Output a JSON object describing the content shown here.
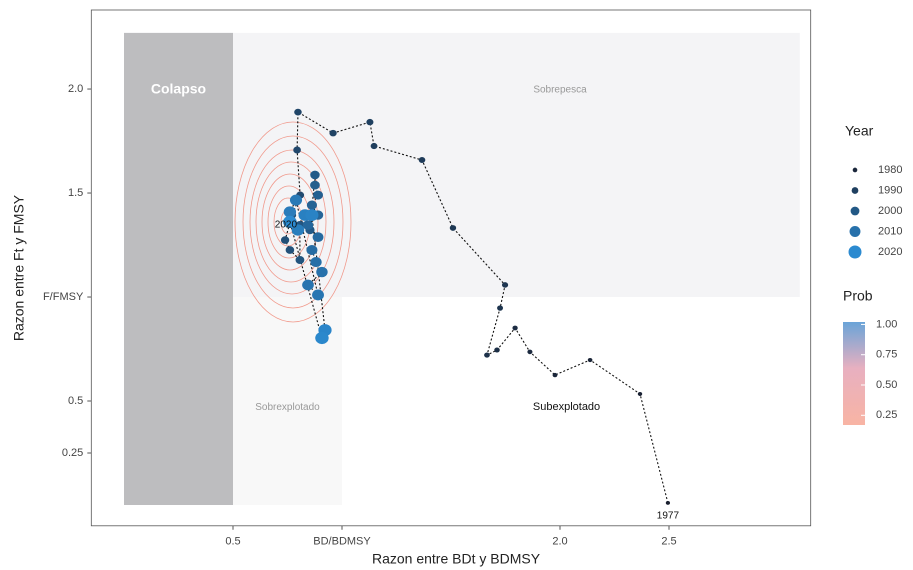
{
  "chart_data": {
    "type": "scatter",
    "x_label": "Razon entre BDt y BDMSY",
    "y_label": "Razon entre Ft y FMSY",
    "xlim": [
      -0.15,
      3.15
    ],
    "ylim": [
      -0.1,
      2.38
    ],
    "xticks": [
      0.5,
      {
        "value": 1,
        "label": "BD/BDMSY"
      },
      {
        "value": 2,
        "label": "2.0"
      },
      2.5
    ],
    "yticks": [
      0.25,
      0.5,
      {
        "value": 1,
        "label": "F/FMSY"
      },
      1.5,
      {
        "value": 2,
        "label": "2.0"
      }
    ],
    "regions": [
      {
        "label": "Colapso",
        "color": "#bdbdbf",
        "x": [
          0,
          0.5
        ],
        "y": [
          0,
          2.27
        ]
      },
      {
        "label": "Sobrepesca",
        "color": "#f4f4f6",
        "x": [
          0.5,
          3.1
        ],
        "y": [
          1,
          2.27
        ]
      },
      {
        "label": "Sobrexplotado",
        "color": "#f8f8f8",
        "x": [
          0.5,
          1
        ],
        "y": [
          0,
          1
        ]
      },
      {
        "label": "Subexplotado",
        "color": "#ffffff",
        "x": [
          1,
          3.1
        ],
        "y": [
          0,
          1
        ]
      }
    ],
    "year": [
      1977,
      1978,
      1979,
      1980,
      1981,
      1982,
      1983,
      1984,
      1985,
      1986,
      1987,
      1988,
      1989,
      1990,
      1991,
      1992,
      1993,
      1994,
      1995,
      1996,
      1997,
      1998,
      1999,
      2000,
      2001,
      2002,
      2003,
      2004,
      2005,
      2006,
      2007,
      2008,
      2009,
      2010,
      2011,
      2012,
      2013,
      2014,
      2015,
      2016,
      2017,
      2018,
      2019,
      2020
    ],
    "x": [
      2.495,
      2.367,
      2.138,
      1.977,
      1.862,
      1.794,
      1.711,
      1.665,
      1.725,
      1.748,
      1.509,
      1.367,
      1.147,
      1.128,
      0.959,
      0.798,
      0.794,
      0.808,
      0.771,
      0.739,
      0.761,
      0.807,
      0.807,
      0.853,
      0.876,
      0.876,
      0.89,
      0.862,
      0.89,
      0.844,
      0.89,
      0.862,
      0.881,
      0.908,
      0.844,
      0.89,
      0.789,
      0.761,
      0.798,
      0.83,
      0.862,
      0.922,
      0.908,
      0.761
    ],
    "y": [
      0.01,
      0.534,
      0.697,
      0.625,
      0.736,
      0.851,
      0.745,
      0.721,
      0.947,
      1.058,
      1.332,
      1.659,
      1.726,
      1.841,
      1.788,
      1.889,
      1.707,
      1.49,
      1.394,
      1.274,
      1.226,
      1.178,
      1.346,
      1.322,
      1.587,
      1.538,
      1.49,
      1.442,
      1.394,
      1.346,
      1.288,
      1.226,
      1.168,
      1.12,
      1.058,
      1.01,
      1.466,
      1.409,
      1.322,
      1.394,
      1.394,
      0.841,
      0.803,
      1.361
    ],
    "legend_title": "Year",
    "legend_years": [
      1980,
      1990,
      2000,
      2010,
      2020
    ],
    "color_low": "#1a2030",
    "color_high": "#2b8ad0",
    "colorbar_title": "Prob",
    "colorbar_ticks": [
      {
        "value": 1,
        "label": "1.00"
      },
      0.75,
      {
        "value": 0.5,
        "label": "0.50"
      },
      0.25
    ]
  }
}
